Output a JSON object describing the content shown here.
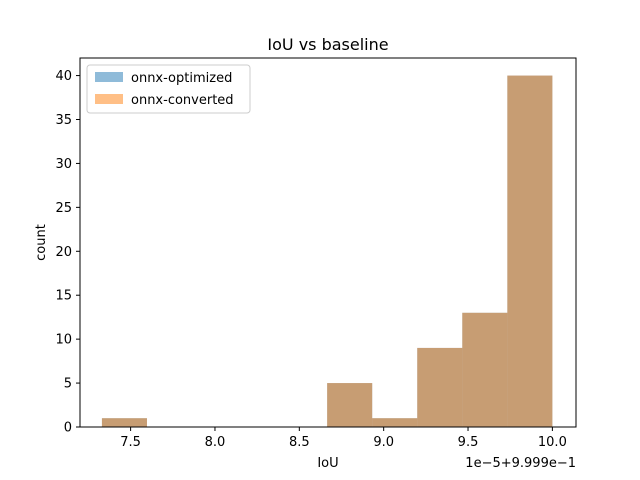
{
  "chart_data": {
    "type": "bar",
    "title": "IoU vs baseline",
    "xlabel": "IoU",
    "ylabel": "count",
    "offset_text": "1e−5+9.999e−1",
    "xlim": [
      7.2,
      10.14
    ],
    "ylim": [
      0,
      42
    ],
    "x_ticks": [
      7.5,
      8.0,
      8.5,
      9.0,
      9.5,
      10.0
    ],
    "x_tick_labels": [
      "7.5",
      "8.0",
      "8.5",
      "9.0",
      "9.5",
      "10.0"
    ],
    "y_ticks": [
      0,
      5,
      10,
      15,
      20,
      25,
      30,
      35,
      40
    ],
    "y_tick_labels": [
      "0",
      "5",
      "10",
      "15",
      "20",
      "25",
      "30",
      "35",
      "40"
    ],
    "bin_edges": [
      7.33,
      7.597,
      7.864,
      8.131,
      8.398,
      8.665,
      8.932,
      9.199,
      9.466,
      9.733,
      10.0
    ],
    "series": [
      {
        "name": "onnx-optimized",
        "color": "#1f77b4",
        "opacity": 0.5,
        "values": [
          1,
          0,
          0,
          0,
          0,
          5,
          1,
          9,
          13,
          40
        ]
      },
      {
        "name": "onnx-converted",
        "color": "#ff7f0e",
        "opacity": 0.5,
        "values": [
          1,
          0,
          0,
          0,
          0,
          5,
          1,
          9,
          13,
          40
        ]
      }
    ],
    "legend_position": "upper-left",
    "grid": false
  }
}
